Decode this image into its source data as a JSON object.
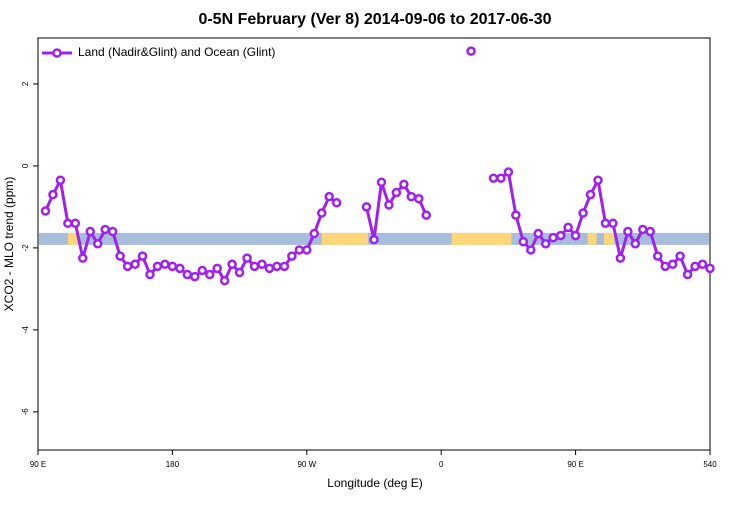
{
  "chart_data": {
    "type": "line",
    "title": "0-5N February (Ver 8)   2014-09-06 to 2017-06-30",
    "x_label": "Longitude (deg E)",
    "y_label": "XCO2 - MLO trend (ppm)",
    "xlim": [
      90,
      540
    ],
    "ylim": [
      -6.93,
      3.12
    ],
    "xticks": [
      {
        "value": 90,
        "label": "90 E"
      },
      180,
      {
        "value": 270,
        "label": "90 W"
      },
      {
        "value": 360,
        "label": "0"
      },
      {
        "value": 450,
        "label": "90 E"
      },
      540
    ],
    "yticks": [
      -6,
      -4,
      -2,
      0,
      2
    ],
    "legend": "top-left",
    "x": [
      95,
      100,
      105,
      110,
      115,
      120,
      125,
      130,
      135,
      140,
      145,
      150,
      155,
      160,
      165,
      170,
      175,
      180,
      185,
      190,
      195,
      200,
      205,
      210,
      215,
      220,
      225,
      230,
      235,
      240,
      245,
      250,
      255,
      260,
      265,
      270,
      275,
      280,
      285,
      290,
      295,
      300,
      305,
      310,
      315,
      320,
      325,
      330,
      335,
      340,
      345,
      350,
      355,
      360,
      365,
      370,
      375,
      380,
      385,
      390,
      395,
      400,
      405,
      410,
      415,
      420,
      425,
      430,
      435,
      440,
      445,
      450,
      455,
      460,
      465,
      470,
      475,
      480,
      485,
      490,
      495,
      500,
      505,
      510,
      515,
      520,
      525,
      530,
      535,
      540
    ],
    "series": [
      {
        "name": "Land (Nadir&Glint) and Ocean (Glint)",
        "color": "#a020f0",
        "values": [
          -1.1,
          -0.7,
          -0.35,
          -1.4,
          -1.4,
          -2.25,
          -1.6,
          -1.9,
          -1.55,
          -1.6,
          -2.2,
          -2.45,
          -2.4,
          -2.2,
          -2.65,
          -2.45,
          -2.4,
          -2.45,
          -2.5,
          -2.65,
          -2.7,
          -2.55,
          -2.65,
          -2.5,
          -2.8,
          -2.4,
          -2.6,
          -2.25,
          -2.45,
          -2.4,
          -2.5,
          -2.45,
          -2.45,
          -2.2,
          -2.05,
          -2.05,
          -1.65,
          -1.15,
          -0.75,
          -0.9,
          null,
          null,
          null,
          -1.0,
          -1.8,
          -0.4,
          -0.95,
          -0.65,
          -0.45,
          -0.75,
          -0.8,
          -1.2,
          null,
          null,
          null,
          null,
          null,
          2.8,
          null,
          null,
          -0.3,
          -0.3,
          -0.15,
          -1.2,
          -1.85,
          -2.05,
          -1.65,
          -1.9,
          -1.75,
          -1.7,
          -1.5,
          -1.7,
          -1.15,
          -0.7,
          -0.35,
          -1.4,
          -1.4,
          -2.25,
          -1.6,
          -1.9,
          -1.55,
          -1.6,
          -2.2,
          -2.45,
          -2.4,
          -2.2,
          -2.65,
          -2.45,
          -2.4,
          -2.5
        ]
      }
    ],
    "surface_band": {
      "y": -1.78,
      "color": "#a6bddb",
      "land_color": "#fcd779",
      "land": [
        [
          110,
          118
        ],
        [
          280,
          311
        ],
        [
          367,
          407
        ],
        [
          458,
          464
        ],
        [
          469,
          476
        ]
      ]
    }
  }
}
